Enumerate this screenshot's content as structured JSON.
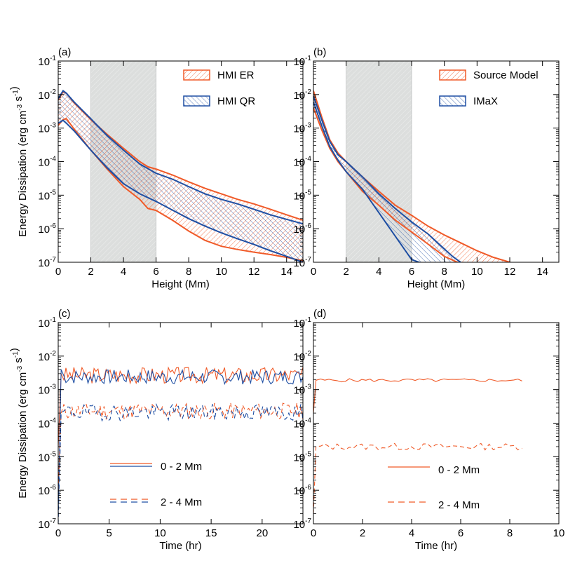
{
  "colors": {
    "orange": "#f05a28",
    "blue": "#1f4fa3",
    "band": "#dcdedd",
    "axis": "#000000"
  },
  "chart_data": [
    {
      "id": "a",
      "panel_label": "(a)",
      "type": "area",
      "xlabel": "Height (Mm)",
      "ylabel": "Energy Dissipation (erg cm^-3 s^-1)",
      "xlim": [
        0,
        15
      ],
      "xticks": [
        "0",
        "2",
        "4",
        "6",
        "8",
        "10",
        "12",
        "14"
      ],
      "xtick_values": [
        0,
        2,
        4,
        6,
        8,
        10,
        12,
        14
      ],
      "ylim": [
        1e-07,
        0.1
      ],
      "yscale": "log",
      "ytick_exponents": [
        "-1",
        "-2",
        "-3",
        "-4",
        "-5",
        "-6",
        "-7"
      ],
      "shaded_band": [
        2,
        6
      ],
      "legend": [
        {
          "label": "HMI ER",
          "color_key": "orange"
        },
        {
          "label": "HMI QR",
          "color_key": "blue"
        }
      ],
      "series": [
        {
          "name": "HMI ER",
          "color_key": "orange",
          "x": [
            0,
            0.3,
            0.5,
            1,
            2,
            3,
            4,
            5,
            5.5,
            6,
            7,
            8,
            9,
            10,
            11,
            12,
            13,
            14,
            15
          ],
          "upper": [
            0.007,
            0.012,
            0.011,
            0.0055,
            0.0018,
            0.00065,
            0.00025,
            0.0001,
            7e-05,
            6e-05,
            4e-05,
            2.5e-05,
            1.6e-05,
            1.1e-05,
            7.5e-06,
            5.5e-06,
            3.8e-06,
            2.6e-06,
            1.8e-06
          ],
          "lower": [
            0.0012,
            0.0018,
            0.0019,
            0.0009,
            0.00022,
            6e-05,
            1.8e-05,
            7.5e-06,
            4e-06,
            3.5e-06,
            1.8e-06,
            8.5e-07,
            4.5e-07,
            3e-07,
            2.4e-07,
            2e-07,
            1.7e-07,
            1.4e-07,
            1.1e-07
          ]
        },
        {
          "name": "HMI QR",
          "color_key": "blue",
          "x": [
            0,
            0.3,
            0.5,
            1,
            2,
            3,
            4,
            5,
            6,
            7,
            8,
            9,
            10,
            11,
            12,
            13,
            14,
            15
          ],
          "upper": [
            0.0075,
            0.013,
            0.011,
            0.0058,
            0.0019,
            0.0006,
            0.00022,
            8.5e-05,
            4.5e-05,
            3e-05,
            1.8e-05,
            1.1e-05,
            7.5e-06,
            5.5e-06,
            3.8e-06,
            2.6e-06,
            1.9e-06,
            1.4e-06
          ],
          "lower": [
            0.0014,
            0.0017,
            0.0014,
            0.0008,
            0.00022,
            6.5e-05,
            2.2e-05,
            1.1e-05,
            6.5e-06,
            3.6e-06,
            2e-06,
            1.2e-06,
            7.5e-07,
            5e-07,
            3.4e-07,
            2.2e-07,
            1.5e-07,
            1e-07
          ]
        }
      ]
    },
    {
      "id": "b",
      "panel_label": "(b)",
      "type": "area",
      "xlabel": "Height (Mm)",
      "ylabel": "",
      "xlim": [
        0,
        15
      ],
      "xticks": [
        "0",
        "2",
        "4",
        "6",
        "8",
        "10",
        "12",
        "14"
      ],
      "xtick_values": [
        0,
        2,
        4,
        6,
        8,
        10,
        12,
        14
      ],
      "ylim": [
        1e-07,
        0.1
      ],
      "yscale": "log",
      "ytick_exponents": [
        "-1",
        "-2",
        "-3",
        "-4",
        "-5",
        "-6",
        "-7"
      ],
      "shaded_band": [
        2,
        6
      ],
      "legend": [
        {
          "label": "Source Model",
          "color_key": "orange"
        },
        {
          "label": "IMaX",
          "color_key": "blue"
        }
      ],
      "series": [
        {
          "name": "Source Model",
          "color_key": "orange",
          "x": [
            0,
            0.5,
            1,
            1.5,
            2,
            3,
            4,
            5,
            6,
            7,
            8,
            9,
            10,
            11,
            12,
            12.5
          ],
          "upper": [
            0.013,
            0.0022,
            0.00045,
            0.00018,
            0.0001,
            3.5e-05,
            1.3e-05,
            5e-06,
            2.5e-06,
            1.2e-06,
            6.5e-07,
            3.8e-07,
            2.2e-07,
            1.4e-07,
            1e-07,
            8e-08
          ],
          "lower": [
            0.004,
            0.0009,
            0.00025,
            0.0001,
            5e-05,
            1.3e-05,
            5e-06,
            1.8e-06,
            8e-07,
            3.5e-07,
            1.5e-07,
            9e-08,
            9e-08,
            9e-08,
            9e-08,
            8e-08
          ]
        },
        {
          "name": "IMaX",
          "color_key": "blue",
          "x": [
            0,
            0.5,
            1,
            1.5,
            2,
            3,
            4,
            5,
            6,
            7,
            8,
            8.5,
            9,
            9.5
          ],
          "upper": [
            0.009,
            0.0018,
            0.0004,
            0.00016,
            0.0001,
            3.5e-05,
            1.1e-05,
            4e-06,
            1.6e-06,
            7e-07,
            2.5e-07,
            1.5e-07,
            1e-07,
            8e-08
          ],
          "lower": [
            0.006,
            0.0012,
            0.00028,
            0.00011,
            5e-05,
            1.5e-05,
            3e-06,
            6e-07,
            1.2e-07,
            8e-08,
            8e-08,
            8e-08,
            8e-08,
            8e-08
          ]
        }
      ]
    },
    {
      "id": "c",
      "panel_label": "(c)",
      "type": "line",
      "xlabel": "Time (hr)",
      "ylabel": "Energy Dissipation (erg cm^-3 s^-1)",
      "xlim": [
        0,
        24
      ],
      "xticks": [
        "0",
        "5",
        "10",
        "15",
        "20"
      ],
      "xtick_values": [
        0,
        5,
        10,
        15,
        20
      ],
      "ylim": [
        1e-07,
        0.1
      ],
      "yscale": "log",
      "ytick_exponents": [
        "-1",
        "-2",
        "-3",
        "-4",
        "-5",
        "-6",
        "-7"
      ],
      "legend": [
        {
          "label": "0 - 2 Mm",
          "style": "solid",
          "color_keys": [
            "orange",
            "blue"
          ]
        },
        {
          "label": "2 - 4 Mm",
          "style": "dashed",
          "color_keys": [
            "orange",
            "blue"
          ]
        }
      ],
      "series": [
        {
          "name": "HMI ER 0 - 2 Mm",
          "color_key": "orange",
          "style": "solid",
          "t_start": 0,
          "t_end": 24,
          "level": 0.0027,
          "spread": 0.25,
          "seed": 3,
          "n": 120,
          "startup": [
            2e-05,
            0.003
          ]
        },
        {
          "name": "HMI QR 0 - 2 Mm",
          "color_key": "blue",
          "style": "solid",
          "t_start": 0,
          "t_end": 24,
          "level": 0.0024,
          "spread": 0.22,
          "seed": 7,
          "n": 120,
          "startup": [
            2e-07,
            0.004
          ]
        },
        {
          "name": "HMI ER 2 - 4 Mm",
          "color_key": "orange",
          "style": "dashed",
          "t_start": 0,
          "t_end": 24,
          "level": 0.00023,
          "spread": 0.25,
          "seed": 11,
          "n": 120,
          "startup": [
            1e-06,
            0.0002
          ]
        },
        {
          "name": "HMI QR 2 - 4 Mm",
          "color_key": "blue",
          "style": "dashed",
          "t_start": 0,
          "t_end": 24,
          "level": 0.00021,
          "spread": 0.25,
          "seed": 19,
          "n": 120,
          "startup": [
            1e-07,
            0.0002
          ]
        }
      ]
    },
    {
      "id": "d",
      "panel_label": "(d)",
      "type": "line",
      "xlabel": "Time (hr)",
      "ylabel": "",
      "xlim": [
        0,
        10
      ],
      "xticks": [
        "0",
        "2",
        "4",
        "6",
        "8",
        "10"
      ],
      "xtick_values": [
        0,
        2,
        4,
        6,
        8,
        10
      ],
      "ylim": [
        1e-07,
        0.1
      ],
      "yscale": "log",
      "ytick_exponents": [
        "-1",
        "-2",
        "-3",
        "-4",
        "-5",
        "-6",
        "-7"
      ],
      "legend": [
        {
          "label": "0 - 2 Mm",
          "style": "solid",
          "color_keys": [
            "orange"
          ]
        },
        {
          "label": "2 - 4 Mm",
          "style": "dashed",
          "color_keys": [
            "orange"
          ]
        }
      ],
      "series": [
        {
          "name": "Source Model 0 - 2 Mm",
          "color_key": "orange",
          "style": "solid",
          "t_start": 0,
          "t_end": 8.5,
          "level": 0.0019,
          "spread": 0.05,
          "seed": 5,
          "n": 50,
          "startup": [
            0.0002,
            0.0019
          ]
        },
        {
          "name": "Source Model 2 - 4 Mm",
          "color_key": "orange",
          "style": "dashed",
          "t_start": 0,
          "t_end": 8.5,
          "level": 2e-05,
          "spread": 0.1,
          "seed": 13,
          "n": 50,
          "startup": [
            2e-07,
            2e-05
          ]
        }
      ]
    }
  ]
}
